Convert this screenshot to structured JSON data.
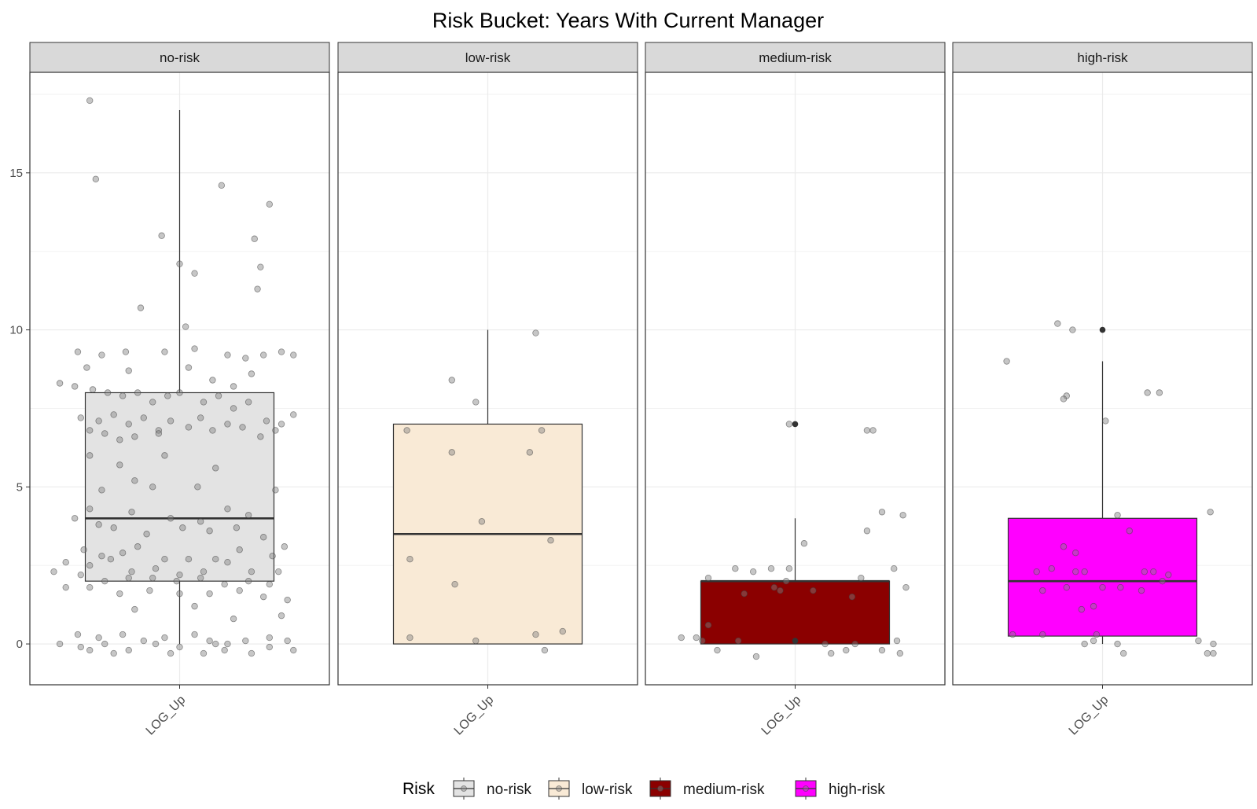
{
  "chart_data": {
    "type": "box",
    "title": "Risk Bucket: Years With Current Manager",
    "xlabel": "",
    "ylabel": "",
    "ylim": [
      -1.3,
      18.2
    ],
    "yticks": [
      0,
      5,
      10,
      15
    ],
    "grid": true,
    "legend": {
      "title": "Risk",
      "position": "bottom",
      "entries": [
        "no-risk",
        "low-risk",
        "medium-risk",
        "high-risk"
      ]
    },
    "panels": [
      {
        "name": "no-risk",
        "x_tick": "LOG_Up",
        "fill": "#e3e3e3",
        "box": {
          "q1": 2,
          "median": 4,
          "q3": 8,
          "whisker_low": 0,
          "whisker_high": 17
        },
        "outliers": [],
        "points": [
          [
            0.2,
            17.3
          ],
          [
            0.22,
            14.8
          ],
          [
            0.64,
            14.6
          ],
          [
            0.8,
            14.0
          ],
          [
            0.44,
            13.0
          ],
          [
            0.75,
            12.9
          ],
          [
            0.77,
            12.0
          ],
          [
            0.5,
            12.1
          ],
          [
            0.55,
            11.8
          ],
          [
            0.76,
            11.3
          ],
          [
            0.37,
            10.7
          ],
          [
            0.52,
            10.1
          ],
          [
            0.24,
            9.2
          ],
          [
            0.16,
            9.3
          ],
          [
            0.32,
            9.3
          ],
          [
            0.45,
            9.3
          ],
          [
            0.55,
            9.4
          ],
          [
            0.66,
            9.2
          ],
          [
            0.72,
            9.1
          ],
          [
            0.78,
            9.2
          ],
          [
            0.84,
            9.3
          ],
          [
            0.88,
            9.2
          ],
          [
            0.19,
            8.8
          ],
          [
            0.33,
            8.7
          ],
          [
            0.53,
            8.8
          ],
          [
            0.61,
            8.4
          ],
          [
            0.68,
            8.2
          ],
          [
            0.74,
            8.6
          ],
          [
            0.1,
            8.3
          ],
          [
            0.15,
            8.2
          ],
          [
            0.21,
            8.1
          ],
          [
            0.26,
            8.0
          ],
          [
            0.31,
            7.9
          ],
          [
            0.36,
            8.0
          ],
          [
            0.41,
            7.7
          ],
          [
            0.46,
            7.9
          ],
          [
            0.5,
            8.0
          ],
          [
            0.58,
            7.7
          ],
          [
            0.63,
            7.9
          ],
          [
            0.68,
            7.5
          ],
          [
            0.73,
            7.7
          ],
          [
            0.79,
            7.1
          ],
          [
            0.84,
            7.0
          ],
          [
            0.88,
            7.3
          ],
          [
            0.17,
            7.2
          ],
          [
            0.23,
            7.1
          ],
          [
            0.28,
            7.3
          ],
          [
            0.33,
            7.0
          ],
          [
            0.38,
            7.2
          ],
          [
            0.43,
            6.8
          ],
          [
            0.47,
            7.1
          ],
          [
            0.53,
            6.9
          ],
          [
            0.57,
            7.2
          ],
          [
            0.61,
            6.8
          ],
          [
            0.66,
            7.0
          ],
          [
            0.71,
            6.9
          ],
          [
            0.77,
            6.6
          ],
          [
            0.82,
            6.8
          ],
          [
            0.2,
            6.8
          ],
          [
            0.25,
            6.7
          ],
          [
            0.3,
            6.5
          ],
          [
            0.35,
            6.6
          ],
          [
            0.43,
            6.7
          ],
          [
            0.2,
            6.0
          ],
          [
            0.45,
            6.0
          ],
          [
            0.3,
            5.7
          ],
          [
            0.62,
            5.6
          ],
          [
            0.35,
            5.2
          ],
          [
            0.41,
            5.0
          ],
          [
            0.56,
            5.0
          ],
          [
            0.24,
            4.9
          ],
          [
            0.82,
            4.9
          ],
          [
            0.2,
            4.3
          ],
          [
            0.34,
            4.2
          ],
          [
            0.47,
            4.0
          ],
          [
            0.57,
            3.9
          ],
          [
            0.66,
            4.3
          ],
          [
            0.73,
            4.1
          ],
          [
            0.15,
            4.0
          ],
          [
            0.23,
            3.8
          ],
          [
            0.28,
            3.7
          ],
          [
            0.39,
            3.5
          ],
          [
            0.51,
            3.7
          ],
          [
            0.6,
            3.6
          ],
          [
            0.69,
            3.7
          ],
          [
            0.78,
            3.4
          ],
          [
            0.85,
            3.1
          ],
          [
            0.18,
            3.0
          ],
          [
            0.24,
            2.8
          ],
          [
            0.31,
            2.9
          ],
          [
            0.36,
            3.1
          ],
          [
            0.45,
            2.7
          ],
          [
            0.53,
            2.7
          ],
          [
            0.62,
            2.7
          ],
          [
            0.7,
            3.0
          ],
          [
            0.81,
            2.8
          ],
          [
            0.12,
            2.6
          ],
          [
            0.2,
            2.5
          ],
          [
            0.27,
            2.7
          ],
          [
            0.34,
            2.3
          ],
          [
            0.42,
            2.4
          ],
          [
            0.5,
            2.2
          ],
          [
            0.58,
            2.3
          ],
          [
            0.66,
            2.6
          ],
          [
            0.74,
            2.3
          ],
          [
            0.83,
            2.3
          ],
          [
            0.08,
            2.3
          ],
          [
            0.17,
            2.2
          ],
          [
            0.25,
            2.0
          ],
          [
            0.33,
            2.1
          ],
          [
            0.41,
            2.1
          ],
          [
            0.49,
            2.0
          ],
          [
            0.57,
            2.1
          ],
          [
            0.65,
            1.9
          ],
          [
            0.73,
            2.0
          ],
          [
            0.8,
            1.9
          ],
          [
            0.12,
            1.8
          ],
          [
            0.2,
            1.8
          ],
          [
            0.3,
            1.6
          ],
          [
            0.4,
            1.7
          ],
          [
            0.5,
            1.6
          ],
          [
            0.6,
            1.6
          ],
          [
            0.7,
            1.7
          ],
          [
            0.78,
            1.5
          ],
          [
            0.86,
            1.4
          ],
          [
            0.35,
            1.1
          ],
          [
            0.55,
            1.2
          ],
          [
            0.68,
            0.8
          ],
          [
            0.84,
            0.9
          ],
          [
            0.16,
            0.3
          ],
          [
            0.23,
            0.2
          ],
          [
            0.31,
            0.3
          ],
          [
            0.38,
            0.1
          ],
          [
            0.45,
            0.2
          ],
          [
            0.55,
            0.3
          ],
          [
            0.6,
            0.1
          ],
          [
            0.66,
            0.0
          ],
          [
            0.72,
            0.1
          ],
          [
            0.8,
            0.2
          ],
          [
            0.86,
            0.1
          ],
          [
            0.1,
            0.0
          ],
          [
            0.17,
            -0.1
          ],
          [
            0.25,
            0.0
          ],
          [
            0.33,
            -0.2
          ],
          [
            0.42,
            0.0
          ],
          [
            0.5,
            -0.1
          ],
          [
            0.58,
            -0.3
          ],
          [
            0.65,
            -0.2
          ],
          [
            0.74,
            -0.3
          ],
          [
            0.8,
            -0.1
          ],
          [
            0.88,
            -0.2
          ],
          [
            0.2,
            -0.2
          ],
          [
            0.28,
            -0.3
          ],
          [
            0.47,
            -0.3
          ],
          [
            0.62,
            0.0
          ]
        ]
      },
      {
        "name": "low-risk",
        "x_tick": "LOG_Up",
        "fill": "#f9ead6",
        "box": {
          "q1": 0,
          "median": 3.5,
          "q3": 7,
          "whisker_low": 0,
          "whisker_high": 10
        },
        "outliers": [],
        "points": [
          [
            0.66,
            9.9
          ],
          [
            0.38,
            8.4
          ],
          [
            0.46,
            7.7
          ],
          [
            0.23,
            6.8
          ],
          [
            0.68,
            6.8
          ],
          [
            0.38,
            6.1
          ],
          [
            0.64,
            6.1
          ],
          [
            0.48,
            3.9
          ],
          [
            0.71,
            3.3
          ],
          [
            0.24,
            2.7
          ],
          [
            0.39,
            1.9
          ],
          [
            0.24,
            0.2
          ],
          [
            0.46,
            0.1
          ],
          [
            0.66,
            0.3
          ],
          [
            0.75,
            0.4
          ],
          [
            0.69,
            -0.2
          ]
        ]
      },
      {
        "name": "medium-risk",
        "x_tick": "LOG_Up",
        "fill": "#8b0000",
        "box": {
          "q1": 0,
          "median": 2,
          "q3": 2,
          "whisker_low": 0,
          "whisker_high": 4
        },
        "outliers": [
          7,
          0.1
        ],
        "points": [
          [
            0.48,
            7.0
          ],
          [
            0.76,
            6.8
          ],
          [
            0.74,
            6.8
          ],
          [
            0.79,
            4.2
          ],
          [
            0.86,
            4.1
          ],
          [
            0.74,
            3.6
          ],
          [
            0.53,
            3.2
          ],
          [
            0.3,
            2.4
          ],
          [
            0.42,
            2.4
          ],
          [
            0.36,
            2.3
          ],
          [
            0.48,
            2.4
          ],
          [
            0.83,
            2.4
          ],
          [
            0.21,
            2.1
          ],
          [
            0.47,
            2.0
          ],
          [
            0.72,
            2.1
          ],
          [
            0.43,
            1.8
          ],
          [
            0.56,
            1.7
          ],
          [
            0.45,
            1.7
          ],
          [
            0.87,
            1.8
          ],
          [
            0.33,
            1.6
          ],
          [
            0.69,
            1.5
          ],
          [
            0.21,
            0.6
          ],
          [
            0.17,
            0.2
          ],
          [
            0.31,
            0.1
          ],
          [
            0.12,
            0.2
          ],
          [
            0.19,
            0.1
          ],
          [
            0.6,
            0.0
          ],
          [
            0.7,
            0.0
          ],
          [
            0.84,
            0.1
          ],
          [
            0.24,
            -0.2
          ],
          [
            0.37,
            -0.4
          ],
          [
            0.62,
            -0.3
          ],
          [
            0.67,
            -0.2
          ],
          [
            0.79,
            -0.2
          ],
          [
            0.85,
            -0.3
          ]
        ]
      },
      {
        "name": "high-risk",
        "x_tick": "LOG_Up",
        "fill": "#ff00ff",
        "box": {
          "q1": 0.25,
          "median": 2,
          "q3": 4,
          "whisker_low": 0,
          "whisker_high": 9
        },
        "outliers": [
          10
        ],
        "points": [
          [
            0.35,
            10.2
          ],
          [
            0.4,
            10.0
          ],
          [
            0.18,
            9.0
          ],
          [
            0.38,
            7.9
          ],
          [
            0.37,
            7.8
          ],
          [
            0.65,
            8.0
          ],
          [
            0.69,
            8.0
          ],
          [
            0.51,
            7.1
          ],
          [
            0.55,
            4.1
          ],
          [
            0.86,
            4.2
          ],
          [
            0.59,
            3.6
          ],
          [
            0.37,
            3.1
          ],
          [
            0.41,
            2.9
          ],
          [
            0.28,
            2.3
          ],
          [
            0.33,
            2.4
          ],
          [
            0.41,
            2.3
          ],
          [
            0.44,
            2.3
          ],
          [
            0.64,
            2.3
          ],
          [
            0.67,
            2.3
          ],
          [
            0.72,
            2.2
          ],
          [
            0.7,
            2.0
          ],
          [
            0.3,
            1.7
          ],
          [
            0.38,
            1.8
          ],
          [
            0.5,
            1.8
          ],
          [
            0.56,
            1.8
          ],
          [
            0.63,
            1.7
          ],
          [
            0.47,
            1.2
          ],
          [
            0.43,
            1.1
          ],
          [
            0.2,
            0.3
          ],
          [
            0.3,
            0.3
          ],
          [
            0.48,
            0.3
          ],
          [
            0.47,
            0.1
          ],
          [
            0.44,
            0.0
          ],
          [
            0.55,
            0.0
          ],
          [
            0.82,
            0.1
          ],
          [
            0.87,
            0.0
          ],
          [
            0.57,
            -0.3
          ],
          [
            0.85,
            -0.3
          ],
          [
            0.87,
            -0.3
          ]
        ]
      }
    ]
  }
}
